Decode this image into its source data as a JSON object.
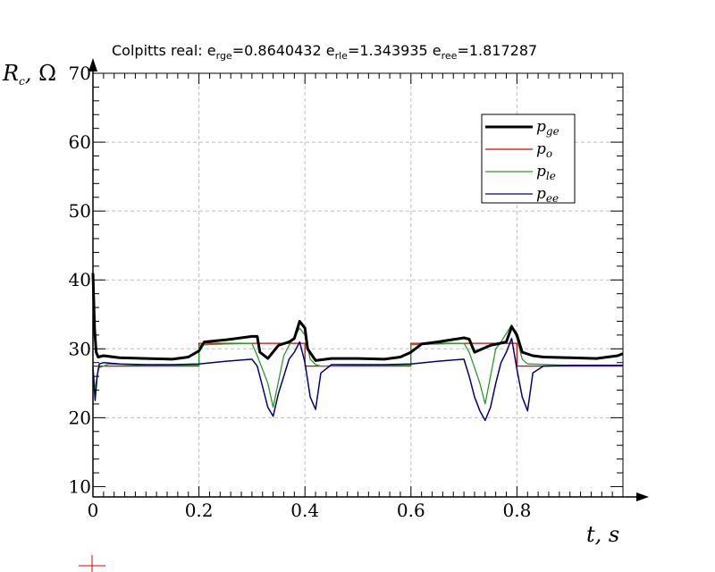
{
  "chart_data": {
    "type": "line",
    "title": {
      "prefix": "Colpitts real: ",
      "items": [
        {
          "base": "e",
          "sub": "rge",
          "value": "=0.8640432 "
        },
        {
          "base": "e",
          "sub": "rle",
          "value": "=1.343935 "
        },
        {
          "base": "e",
          "sub": "ree",
          "value": "=1.817287"
        }
      ]
    },
    "xlabel": {
      "var": "t",
      "unit": "s"
    },
    "ylabel": {
      "var": "R",
      "sub": "c",
      "unit": "Ω"
    },
    "xlim": [
      0,
      1.0
    ],
    "ylim": [
      8.5,
      70
    ],
    "xticks": [
      0,
      0.2,
      0.4,
      0.6,
      0.8
    ],
    "xtick_labels": [
      "0",
      "0.2",
      "0.4",
      "0.6",
      "0.8"
    ],
    "yticks": [
      10,
      20,
      30,
      40,
      50,
      60,
      70
    ],
    "ytick_labels": [
      "10",
      "20",
      "30",
      "40",
      "50",
      "60",
      "70"
    ],
    "grid": true,
    "legend_position": "top-right",
    "series": [
      {
        "key": "pge",
        "name_base": "p",
        "name_sub": "ge",
        "color": "#000000",
        "x": [
          0,
          0.003,
          0.006,
          0.01,
          0.02,
          0.05,
          0.1,
          0.15,
          0.18,
          0.2,
          0.21,
          0.25,
          0.3,
          0.31,
          0.315,
          0.33,
          0.35,
          0.37,
          0.38,
          0.39,
          0.4,
          0.405,
          0.42,
          0.45,
          0.5,
          0.55,
          0.58,
          0.6,
          0.62,
          0.65,
          0.7,
          0.71,
          0.72,
          0.75,
          0.78,
          0.79,
          0.8,
          0.81,
          0.83,
          0.85,
          0.9,
          0.95,
          0.99,
          1.0
        ],
        "y": [
          41,
          33,
          29.5,
          28.8,
          29.0,
          28.7,
          28.6,
          28.5,
          28.8,
          29.7,
          31.0,
          31.3,
          31.8,
          31.8,
          29.5,
          28.6,
          30.5,
          31.0,
          31.5,
          34.0,
          33.0,
          30.0,
          28.3,
          28.6,
          28.6,
          28.5,
          28.8,
          29.5,
          30.7,
          31.0,
          31.6,
          31.4,
          29.5,
          30.5,
          31.0,
          33.2,
          32.0,
          29.5,
          29.0,
          28.8,
          28.7,
          28.6,
          29.0,
          29.3
        ]
      },
      {
        "key": "po",
        "name_base": "p",
        "name_sub": "o",
        "color": "#d40000",
        "x": [
          0,
          0.2,
          0.2,
          0.4,
          0.4,
          0.6,
          0.6,
          0.8,
          0.8,
          1.0
        ],
        "y": [
          27.5,
          27.5,
          30.8,
          30.8,
          27.5,
          27.5,
          30.8,
          30.8,
          27.5,
          27.5
        ]
      },
      {
        "key": "ple",
        "name_base": "p",
        "name_sub": "le",
        "color": "#2a9a2a",
        "x": [
          0,
          0.004,
          0.01,
          0.03,
          0.1,
          0.2,
          0.2,
          0.21,
          0.25,
          0.3,
          0.31,
          0.33,
          0.34,
          0.36,
          0.37,
          0.39,
          0.4,
          0.41,
          0.42,
          0.43,
          0.5,
          0.6,
          0.6,
          0.65,
          0.7,
          0.71,
          0.73,
          0.74,
          0.76,
          0.77,
          0.79,
          0.8,
          0.81,
          0.82,
          0.9,
          1.0
        ],
        "y": [
          27.5,
          24.0,
          27.2,
          27.8,
          27.6,
          27.6,
          30.5,
          30.6,
          30.7,
          30.8,
          29.0,
          25.0,
          21.5,
          29.0,
          30.5,
          33.0,
          32.0,
          28.5,
          27.7,
          27.5,
          27.6,
          27.6,
          30.6,
          30.7,
          30.8,
          29.5,
          25.0,
          22.0,
          30.0,
          31.0,
          33.5,
          31.5,
          28.5,
          27.8,
          27.6,
          27.6
        ]
      },
      {
        "key": "pee",
        "name_base": "p",
        "name_sub": "ee",
        "color": "#000080",
        "x": [
          0,
          0.004,
          0.008,
          0.012,
          0.02,
          0.05,
          0.1,
          0.15,
          0.2,
          0.25,
          0.3,
          0.31,
          0.32,
          0.33,
          0.34,
          0.35,
          0.36,
          0.37,
          0.38,
          0.39,
          0.4,
          0.41,
          0.42,
          0.43,
          0.45,
          0.5,
          0.55,
          0.6,
          0.65,
          0.7,
          0.71,
          0.72,
          0.73,
          0.74,
          0.75,
          0.76,
          0.77,
          0.78,
          0.79,
          0.8,
          0.81,
          0.82,
          0.83,
          0.85,
          0.9,
          1.0
        ],
        "y": [
          27.0,
          22.5,
          26.0,
          27.8,
          28.0,
          27.8,
          27.7,
          27.7,
          27.8,
          28.2,
          28.5,
          27.5,
          24.5,
          21.5,
          20.2,
          23.5,
          26.0,
          28.5,
          29.5,
          31.0,
          28.0,
          23.0,
          21.2,
          26.5,
          27.7,
          27.7,
          27.7,
          27.8,
          28.2,
          28.5,
          26.0,
          23.0,
          21.0,
          19.6,
          21.5,
          25.0,
          28.0,
          29.5,
          31.5,
          27.0,
          23.0,
          21.0,
          26.5,
          27.5,
          27.6,
          27.6
        ]
      }
    ]
  }
}
